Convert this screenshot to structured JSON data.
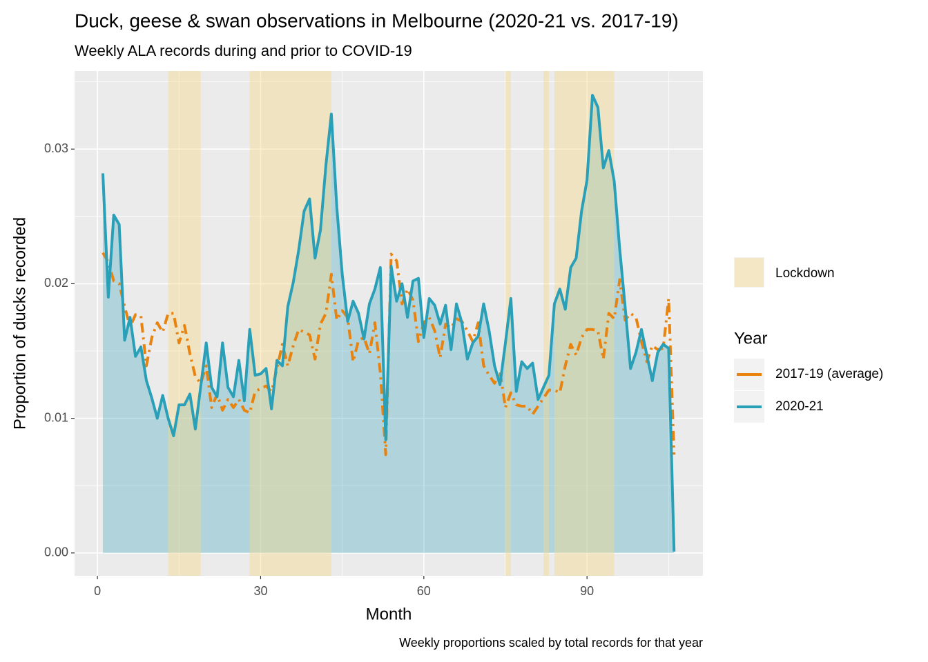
{
  "chart_data": {
    "type": "line",
    "title": "Duck, geese & swan observations in Melbourne (2020-21 vs. 2017-19)",
    "subtitle": "Weekly ALA records during and prior to COVID-19",
    "xlabel": "Month",
    "ylabel": "Proportion of ducks recorded",
    "caption": "Weekly proportions scaled by total records for that year",
    "legend_title": "Year",
    "xlim": [
      -4.2,
      111.3
    ],
    "ylim": [
      -0.0017,
      0.0358
    ],
    "xticks": [
      0,
      30,
      60,
      90
    ],
    "yticks": [
      {
        "value": 0,
        "label": "0.00"
      },
      0.01,
      0.02,
      0.03
    ],
    "xminor": [
      15,
      45,
      75,
      105
    ],
    "yminor": [
      0.005,
      0.015,
      0.025,
      0.035
    ],
    "grid": true,
    "shade_label": "Lockdown",
    "shade_color": "#f5d98a",
    "shaded_regions": [
      [
        13,
        19
      ],
      [
        28,
        43
      ],
      [
        75,
        76
      ],
      [
        82,
        83
      ],
      [
        84,
        95
      ]
    ],
    "x": [
      1,
      2,
      3,
      4,
      5,
      6,
      7,
      8,
      9,
      10,
      11,
      12,
      13,
      14,
      15,
      16,
      17,
      18,
      19,
      20,
      21,
      22,
      23,
      24,
      25,
      26,
      27,
      28,
      29,
      30,
      31,
      32,
      33,
      34,
      35,
      36,
      37,
      38,
      39,
      40,
      41,
      42,
      43,
      44,
      45,
      46,
      47,
      48,
      49,
      50,
      51,
      52,
      53,
      54,
      55,
      56,
      57,
      58,
      59,
      60,
      61,
      62,
      63,
      64,
      65,
      66,
      67,
      68,
      69,
      70,
      71,
      72,
      73,
      74,
      75,
      76,
      77,
      78,
      79,
      80,
      81,
      82,
      83,
      84,
      85,
      86,
      87,
      88,
      89,
      90,
      91,
      92,
      93,
      94,
      95,
      96,
      97,
      98,
      99,
      100,
      101,
      102,
      103,
      104,
      105,
      106
    ],
    "series": [
      {
        "name": "2017-19 (average)",
        "color": "#e8830f",
        "dashed": true,
        "area": false,
        "values": [
          0.0223,
          0.0216,
          0.0202,
          0.02,
          0.0183,
          0.0168,
          0.0177,
          0.0176,
          0.0139,
          0.016,
          0.0171,
          0.0164,
          0.0178,
          0.0178,
          0.0156,
          0.0169,
          0.0148,
          0.0131,
          0.0126,
          0.0139,
          0.0108,
          0.0118,
          0.0106,
          0.0114,
          0.0108,
          0.0114,
          0.0106,
          0.0104,
          0.012,
          0.0122,
          0.0124,
          0.012,
          0.0137,
          0.0155,
          0.0139,
          0.0154,
          0.0166,
          0.0164,
          0.0162,
          0.0144,
          0.017,
          0.0178,
          0.0207,
          0.0173,
          0.018,
          0.0175,
          0.0142,
          0.0158,
          0.016,
          0.0148,
          0.0171,
          0.0134,
          0.0073,
          0.0222,
          0.0217,
          0.0185,
          0.0196,
          0.0188,
          0.0157,
          0.0171,
          0.0175,
          0.0165,
          0.0145,
          0.017,
          0.0167,
          0.0174,
          0.0172,
          0.0165,
          0.0157,
          0.0171,
          0.0139,
          0.0132,
          0.0126,
          0.0135,
          0.0108,
          0.0119,
          0.011,
          0.0109,
          0.0109,
          0.0103,
          0.0109,
          0.0115,
          0.0121,
          0.0121,
          0.0119,
          0.0139,
          0.0155,
          0.0147,
          0.016,
          0.0166,
          0.0166,
          0.0165,
          0.0144,
          0.0178,
          0.0174,
          0.0203,
          0.0173,
          0.0178,
          0.0175,
          0.0157,
          0.0142,
          0.0154,
          0.0151,
          0.0152,
          0.0189,
          0.0073
        ]
      },
      {
        "name": "2020-21",
        "color": "#2a9fb8",
        "dashed": false,
        "area": true,
        "values": [
          0.0282,
          0.019,
          0.0251,
          0.0244,
          0.0158,
          0.0175,
          0.0146,
          0.0153,
          0.0128,
          0.0115,
          0.01,
          0.0117,
          0.01,
          0.0087,
          0.011,
          0.011,
          0.0118,
          0.0092,
          0.0124,
          0.0156,
          0.0123,
          0.0116,
          0.0156,
          0.0123,
          0.0116,
          0.0143,
          0.0113,
          0.0166,
          0.0132,
          0.0133,
          0.0137,
          0.0107,
          0.0143,
          0.0139,
          0.0183,
          0.0201,
          0.0225,
          0.0254,
          0.0263,
          0.0219,
          0.024,
          0.0288,
          0.0326,
          0.0257,
          0.0207,
          0.0172,
          0.0187,
          0.0178,
          0.0159,
          0.0185,
          0.0196,
          0.0212,
          0.0084,
          0.0213,
          0.0187,
          0.02,
          0.0175,
          0.0202,
          0.0204,
          0.016,
          0.0189,
          0.0184,
          0.017,
          0.0184,
          0.0151,
          0.0185,
          0.0171,
          0.0144,
          0.0156,
          0.0161,
          0.0185,
          0.0165,
          0.0139,
          0.0125,
          0.0156,
          0.0189,
          0.012,
          0.0142,
          0.0137,
          0.0141,
          0.0114,
          0.0123,
          0.0132,
          0.0185,
          0.0196,
          0.0181,
          0.0212,
          0.0219,
          0.0254,
          0.0277,
          0.034,
          0.0331,
          0.0286,
          0.0299,
          0.0276,
          0.0226,
          0.0183,
          0.0137,
          0.0149,
          0.0166,
          0.0147,
          0.0128,
          0.0149,
          0.0155,
          0.0152,
          0.0001
        ]
      }
    ]
  }
}
